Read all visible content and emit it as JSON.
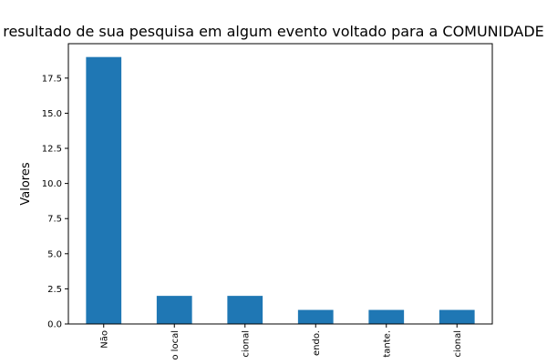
{
  "chart_data": {
    "type": "bar",
    "title": "resultado de sua pesquisa em algum evento voltado para a COMUNIDADE",
    "xlabel": "",
    "ylabel": "Valores",
    "categories": [
      "Não",
      "o local",
      "cional",
      "endo.",
      "tante.",
      "cional"
    ],
    "values": [
      19,
      2,
      2,
      1,
      1,
      1
    ],
    "ylim": [
      0,
      19.95
    ],
    "yticks": [
      0.0,
      2.5,
      5.0,
      7.5,
      10.0,
      12.5,
      15.0,
      17.5
    ],
    "ytick_labels": [
      "0.0",
      "2.5",
      "5.0",
      "7.5",
      "10.0",
      "12.5",
      "15.0",
      "17.5"
    ],
    "bar_color": "#1f77b4",
    "grid": false,
    "legend": "none"
  }
}
